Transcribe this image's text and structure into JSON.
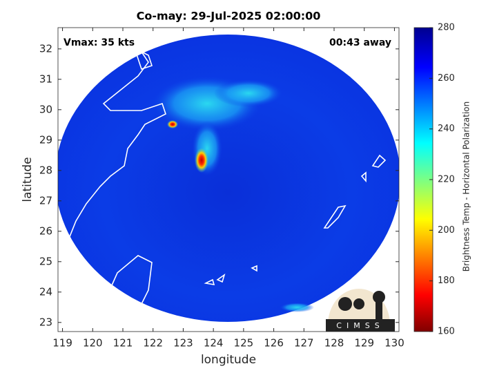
{
  "chart_data": {
    "type": "satellite-map",
    "title": "Co-may: 29-Jul-2025 02:00:00",
    "x_label": "longitude",
    "y_label": "latitude",
    "xlim": [
      118.85,
      130.15
    ],
    "ylim": [
      22.7,
      32.7
    ],
    "xticks": [
      119,
      120,
      121,
      122,
      123,
      124,
      125,
      126,
      127,
      128,
      129,
      130
    ],
    "yticks": [
      23,
      24,
      25,
      26,
      27,
      28,
      29,
      30,
      31,
      32
    ],
    "annotations": [
      "Vmax: 35 kts",
      "00:43 away"
    ],
    "logo": "CIMSS",
    "colorbar": {
      "label": "Brightness Temp - Horizontal Polarization",
      "clim": [
        160,
        280
      ],
      "ticks": [
        160,
        180,
        200,
        220,
        240,
        260,
        280
      ],
      "colormap": "jet"
    }
  }
}
